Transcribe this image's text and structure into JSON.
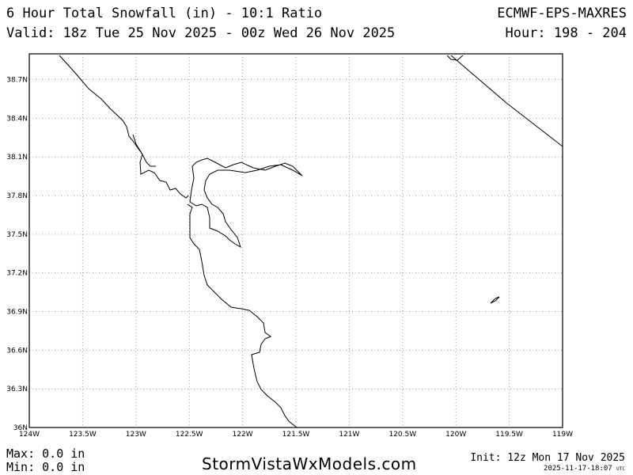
{
  "header": {
    "product_title": "6 Hour Total Snowfall (in) - 10:1 Ratio",
    "model": "ECMWF-EPS-MAXRES",
    "valid": "Valid: 18z Tue 25 Nov 2025 - 00z Wed 26 Nov 2025",
    "hour": "Hour: 198 - 204"
  },
  "map": {
    "lon_range": [
      -124.0,
      -119.0
    ],
    "lat_range": [
      36.0,
      38.9
    ],
    "grid": true,
    "lon_ticks": [
      {
        "value": -124.0,
        "label": "124W"
      },
      {
        "value": -123.5,
        "label": "123.5W"
      },
      {
        "value": -123.0,
        "label": "123W"
      },
      {
        "value": -122.5,
        "label": "122.5W"
      },
      {
        "value": -122.0,
        "label": "122W"
      },
      {
        "value": -121.5,
        "label": "121.5W"
      },
      {
        "value": -121.0,
        "label": "121W"
      },
      {
        "value": -120.5,
        "label": "120.5W"
      },
      {
        "value": -120.0,
        "label": "120W"
      },
      {
        "value": -119.5,
        "label": "119.5W"
      },
      {
        "value": -119.0,
        "label": "119W"
      }
    ],
    "lat_ticks": [
      {
        "value": 36.0,
        "label": "36N"
      },
      {
        "value": 36.3,
        "label": "36.3N"
      },
      {
        "value": 36.6,
        "label": "36.6N"
      },
      {
        "value": 36.9,
        "label": "36.9N"
      },
      {
        "value": 37.2,
        "label": "37.2N"
      },
      {
        "value": 37.5,
        "label": "37.5N"
      },
      {
        "value": 37.8,
        "label": "37.8N"
      },
      {
        "value": 38.1,
        "label": "38.1N"
      },
      {
        "value": 38.4,
        "label": "38.4N"
      },
      {
        "value": 38.7,
        "label": "38.7N"
      }
    ]
  },
  "stats": {
    "max": "Max: 0.0 in",
    "min": "Min: 0.0 in"
  },
  "footer": {
    "brand": "StormVistaWxModels.com",
    "init": "Init: 12z Mon 17 Nov 2025",
    "generated": "2025-11-17-18:07",
    "generated_tz": "UTC"
  }
}
